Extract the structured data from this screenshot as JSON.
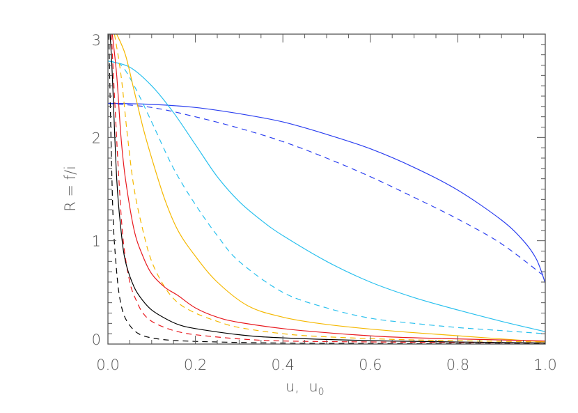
{
  "chart_data": {
    "type": "line",
    "title": "",
    "xlabel": "u, u0",
    "xlabel_main": "u,  u",
    "xlabel_sub": "0",
    "ylabel": "R = f/i",
    "xlim": [
      0.0,
      1.0
    ],
    "ylim": [
      0.0,
      3.0
    ],
    "grid": false,
    "legend": null,
    "x_ticks": [
      0.0,
      0.2,
      0.4,
      0.6,
      0.8,
      1.0
    ],
    "x_tick_labels": [
      "0.0",
      "0.2",
      "0.4",
      "0.6",
      "0.8",
      "1.0"
    ],
    "y_ticks": [
      0,
      1,
      2,
      3
    ],
    "y_tick_labels": [
      "0",
      "1",
      "2",
      "3"
    ],
    "series": [
      {
        "name": "blue-solid",
        "color": "#2b3ff0",
        "dash": "solid",
        "x": [
          0.0,
          0.1,
          0.2,
          0.3,
          0.4,
          0.5,
          0.6,
          0.7,
          0.8,
          0.9,
          0.95,
          0.98,
          1.0
        ],
        "y": [
          2.33,
          2.32,
          2.29,
          2.23,
          2.15,
          2.03,
          1.89,
          1.71,
          1.49,
          1.2,
          1.0,
          0.82,
          0.59
        ]
      },
      {
        "name": "blue-dashed",
        "color": "#2b3ff0",
        "dash": "dashed",
        "x": [
          0.0,
          0.1,
          0.2,
          0.3,
          0.4,
          0.5,
          0.6,
          0.7,
          0.8,
          0.9,
          1.0
        ],
        "y": [
          2.33,
          2.29,
          2.2,
          2.09,
          1.96,
          1.8,
          1.62,
          1.42,
          1.21,
          0.97,
          0.65
        ]
      },
      {
        "name": "cyan-solid",
        "color": "#29c0ee",
        "dash": "solid",
        "x": [
          0.0,
          0.05,
          0.1,
          0.15,
          0.2,
          0.25,
          0.3,
          0.35,
          0.4,
          0.5,
          0.6,
          0.7,
          0.8,
          0.9,
          1.0
        ],
        "y": [
          2.74,
          2.68,
          2.5,
          2.24,
          1.93,
          1.62,
          1.38,
          1.2,
          1.05,
          0.8,
          0.6,
          0.45,
          0.33,
          0.22,
          0.12
        ]
      },
      {
        "name": "cyan-dashed",
        "color": "#29c0ee",
        "dash": "dashed",
        "x": [
          0.0,
          0.03,
          0.06,
          0.1,
          0.15,
          0.2,
          0.25,
          0.3,
          0.4,
          0.5,
          0.6,
          0.7,
          0.8,
          0.9,
          1.0
        ],
        "y": [
          2.74,
          2.7,
          2.5,
          2.15,
          1.7,
          1.35,
          1.05,
          0.8,
          0.5,
          0.35,
          0.25,
          0.2,
          0.16,
          0.13,
          0.1
        ]
      },
      {
        "name": "orange-solid",
        "color": "#f5b800",
        "dash": "solid",
        "x": [
          0.02,
          0.04,
          0.06,
          0.08,
          0.1,
          0.13,
          0.16,
          0.2,
          0.25,
          0.32,
          0.4,
          0.5,
          0.64,
          0.8,
          1.0
        ],
        "y": [
          3.0,
          2.8,
          2.45,
          2.1,
          1.8,
          1.4,
          1.1,
          0.85,
          0.6,
          0.37,
          0.26,
          0.19,
          0.13,
          0.08,
          0.02
        ]
      },
      {
        "name": "orange-dashed",
        "color": "#f5b800",
        "dash": "dashed",
        "x": [
          0.015,
          0.03,
          0.045,
          0.06,
          0.08,
          0.1,
          0.13,
          0.16,
          0.2,
          0.25,
          0.3,
          0.4,
          0.5,
          0.7,
          1.0
        ],
        "y": [
          3.0,
          2.6,
          2.0,
          1.5,
          1.1,
          0.8,
          0.55,
          0.4,
          0.3,
          0.22,
          0.16,
          0.1,
          0.07,
          0.04,
          0.02
        ]
      },
      {
        "name": "red-solid",
        "color": "#e8191e",
        "dash": "solid",
        "x": [
          0.01,
          0.02,
          0.03,
          0.04,
          0.06,
          0.08,
          0.1,
          0.13,
          0.16,
          0.2,
          0.25,
          0.3,
          0.4,
          0.5,
          0.64,
          0.8,
          1.0
        ],
        "y": [
          3.0,
          2.6,
          2.0,
          1.6,
          1.1,
          0.85,
          0.68,
          0.55,
          0.47,
          0.35,
          0.26,
          0.21,
          0.15,
          0.11,
          0.07,
          0.05,
          0.03
        ]
      },
      {
        "name": "red-dashed",
        "color": "#e8191e",
        "dash": "dashed",
        "x": [
          0.008,
          0.015,
          0.025,
          0.035,
          0.05,
          0.065,
          0.08,
          0.1,
          0.13,
          0.16,
          0.2,
          0.3,
          0.4,
          0.6,
          1.0
        ],
        "y": [
          3.0,
          2.4,
          1.6,
          1.0,
          0.6,
          0.42,
          0.3,
          0.22,
          0.16,
          0.12,
          0.09,
          0.05,
          0.03,
          0.02,
          0.01
        ]
      },
      {
        "name": "black-solid",
        "color": "#000000",
        "dash": "solid",
        "x": [
          0.005,
          0.01,
          0.02,
          0.03,
          0.04,
          0.06,
          0.08,
          0.1,
          0.13,
          0.16,
          0.2,
          0.3,
          0.4,
          0.64,
          1.0
        ],
        "y": [
          3.0,
          2.6,
          1.6,
          1.1,
          0.8,
          0.55,
          0.42,
          0.33,
          0.25,
          0.19,
          0.15,
          0.09,
          0.06,
          0.03,
          0.01
        ]
      },
      {
        "name": "black-dashed",
        "color": "#000000",
        "dash": "dashed",
        "x": [
          0.002,
          0.005,
          0.008,
          0.012,
          0.018,
          0.025,
          0.035,
          0.05,
          0.07,
          0.1,
          0.15,
          0.25,
          0.4,
          0.7,
          1.0
        ],
        "y": [
          3.0,
          2.4,
          1.8,
          1.2,
          0.8,
          0.5,
          0.3,
          0.18,
          0.1,
          0.06,
          0.035,
          0.02,
          0.01,
          0.005,
          0.003
        ]
      }
    ]
  },
  "colors": {
    "axis": "#555555",
    "background": "#ffffff"
  }
}
